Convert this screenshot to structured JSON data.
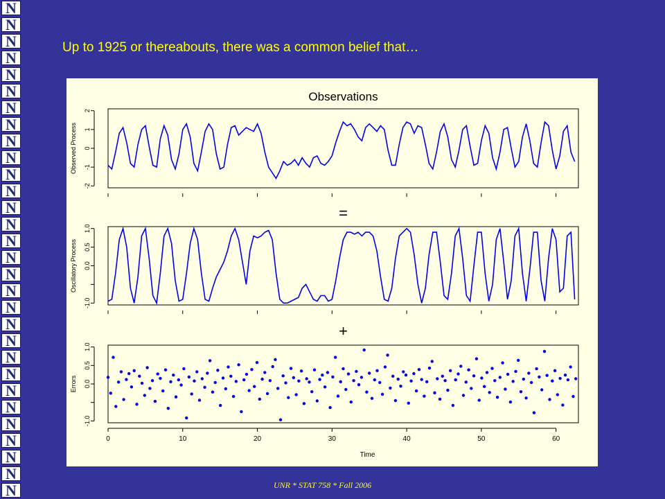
{
  "headline": "Up to 1925 or thereabouts, there was a common belief that…",
  "footer": "UNR * STAT 758 * Fall 2006",
  "logo_letter": "N",
  "colors": {
    "background": "#333399",
    "headline": "#ffff00",
    "panel": "#ffffe6",
    "series": "#0000ee"
  },
  "chart_data": [
    {
      "type": "line",
      "title": "Observations",
      "ylabel": "Observed Process",
      "yticks": [
        -2,
        -1,
        0,
        1,
        2
      ],
      "ylim": [
        -2.1,
        2.1
      ],
      "xlim": [
        0,
        63
      ],
      "series": [
        {
          "x": [
            0,
            0.5,
            1,
            1.5,
            2,
            2.5,
            3,
            3.5,
            4,
            4.5,
            5,
            5.5,
            6,
            6.5,
            7,
            7.5,
            8,
            8.5,
            9,
            9.5,
            10,
            10.5,
            11,
            11.5,
            12,
            12.5,
            13,
            13.5,
            14,
            14.5,
            15,
            15.5,
            16,
            16.5,
            17,
            17.5,
            18,
            18.5,
            19,
            19.5,
            20,
            20.5,
            21,
            21.5,
            22,
            22.5,
            23,
            23.5,
            24,
            24.5,
            25,
            25.5,
            26,
            26.5,
            27,
            27.5,
            28,
            28.5,
            29,
            29.5,
            30,
            30.5,
            31,
            31.5,
            32,
            32.5,
            33,
            33.5,
            34,
            34.5,
            35,
            35.5,
            36,
            36.5,
            37,
            37.5,
            38,
            38.5,
            39,
            39.5,
            40,
            40.5,
            41,
            41.5,
            42,
            42.5,
            43,
            43.5,
            44,
            44.5,
            45,
            45.5,
            46,
            46.5,
            47,
            47.5,
            48,
            48.5,
            49,
            49.5,
            50,
            50.5,
            51,
            51.5,
            52,
            52.5,
            53,
            53.5,
            54,
            54.5,
            55,
            55.5,
            56,
            56.5,
            57,
            57.5,
            58,
            58.5,
            59,
            59.5,
            60,
            60.5,
            61,
            61.5,
            62,
            62.5
          ],
          "values": [
            -0.9,
            -1.1,
            -0.2,
            0.8,
            1.1,
            0.3,
            -0.8,
            -1.0,
            0.2,
            1.0,
            1.2,
            0.1,
            -0.9,
            -1.0,
            0.5,
            1.2,
            0.7,
            -0.6,
            -1.1,
            -0.3,
            1.0,
            1.3,
            0.6,
            -0.8,
            -1.2,
            -0.2,
            0.9,
            1.3,
            1.0,
            -0.3,
            -1.1,
            -1.0,
            0.2,
            1.1,
            1.2,
            0.7,
            0.9,
            1.1,
            1.0,
            0.9,
            1.3,
            0.8,
            -0.2,
            -1.0,
            -1.3,
            -1.6,
            -1.2,
            -0.7,
            -0.9,
            -0.8,
            -0.6,
            -0.9,
            -0.5,
            -0.8,
            -1.0,
            -0.5,
            -0.4,
            -0.8,
            -0.9,
            -0.7,
            -0.4,
            0.3,
            0.9,
            1.4,
            1.2,
            1.3,
            1.0,
            0.6,
            0.4,
            1.1,
            1.3,
            1.1,
            0.9,
            1.2,
            1.0,
            -0.1,
            -0.9,
            -0.9,
            0.2,
            1.1,
            1.4,
            1.3,
            0.8,
            1.2,
            1.1,
            0.2,
            -0.8,
            -1.1,
            -0.2,
            0.9,
            1.3,
            0.6,
            -0.6,
            -1.0,
            -0.1,
            1.0,
            1.2,
            0.1,
            -0.9,
            -0.8,
            0.4,
            1.2,
            0.8,
            -0.5,
            -1.1,
            -0.2,
            1.0,
            1.1,
            0.0,
            -1.0,
            -0.7,
            0.6,
            1.3,
            0.4,
            -0.8,
            -1.0,
            0.3,
            1.4,
            1.2,
            -0.1,
            -1.1,
            -0.4,
            0.9,
            1.2,
            -0.2,
            -0.7
          ]
        }
      ]
    },
    {
      "type": "line",
      "title": "=",
      "ylabel": "Oscillatory Process",
      "yticks": [
        -1.0,
        -0.5,
        0.0,
        0.5,
        1.0
      ],
      "yticklabels": [
        "-1.0",
        "",
        "0.0",
        "0.5",
        "1.0"
      ],
      "ylim": [
        -1.05,
        1.05
      ],
      "xlim": [
        0,
        63
      ],
      "series": [
        {
          "x": [
            0,
            0.5,
            1,
            1.5,
            2,
            2.5,
            3,
            3.5,
            4,
            4.5,
            5,
            5.5,
            6,
            6.5,
            7,
            7.5,
            8,
            8.5,
            9,
            9.5,
            10,
            10.5,
            11,
            11.5,
            12,
            12.5,
            13,
            13.5,
            14,
            14.5,
            15,
            15.5,
            16,
            16.5,
            17,
            17.5,
            18,
            18.5,
            19,
            19.5,
            20,
            20.5,
            21,
            21.5,
            22,
            22.5,
            23,
            23.5,
            24,
            24.5,
            25,
            25.5,
            26,
            26.5,
            27,
            27.5,
            28,
            28.5,
            29,
            29.5,
            30,
            30.5,
            31,
            31.5,
            32,
            32.5,
            33,
            33.5,
            34,
            34.5,
            35,
            35.5,
            36,
            36.5,
            37,
            37.5,
            38,
            38.5,
            39,
            39.5,
            40,
            40.5,
            41,
            41.5,
            42,
            42.5,
            43,
            43.5,
            44,
            44.5,
            45,
            45.5,
            46,
            46.5,
            47,
            47.5,
            48,
            48.5,
            49,
            49.5,
            50,
            50.5,
            51,
            51.5,
            52,
            52.5,
            53,
            53.5,
            54,
            54.5,
            55,
            55.5,
            56,
            56.5,
            57,
            57.5,
            58,
            58.5,
            59,
            59.5,
            60,
            60.5,
            61,
            61.5,
            62,
            62.5
          ],
          "values": [
            -0.95,
            -0.9,
            -0.2,
            0.7,
            1.0,
            0.5,
            -0.6,
            -1.0,
            -0.3,
            0.8,
            1.0,
            0.2,
            -0.8,
            -1.0,
            -0.2,
            0.8,
            1.0,
            0.6,
            -0.4,
            -0.95,
            -0.9,
            -0.2,
            0.6,
            1.0,
            0.7,
            -0.2,
            -0.9,
            -0.95,
            -0.6,
            -0.3,
            -0.1,
            0.1,
            0.4,
            0.8,
            1.0,
            0.7,
            0.1,
            -0.5,
            0.4,
            0.8,
            0.75,
            0.8,
            0.9,
            0.95,
            0.7,
            -0.2,
            -0.9,
            -1.0,
            -1.0,
            -0.95,
            -0.9,
            -0.85,
            -0.6,
            -0.5,
            -0.7,
            -0.9,
            -0.95,
            -0.8,
            -0.8,
            -0.95,
            -0.9,
            -0.4,
            0.2,
            0.7,
            0.9,
            0.9,
            0.85,
            0.9,
            0.8,
            0.9,
            0.9,
            0.8,
            0.4,
            -0.3,
            -0.9,
            -0.95,
            -0.6,
            0.2,
            0.8,
            0.9,
            1.0,
            0.9,
            0.3,
            -0.5,
            -1.0,
            -0.6,
            0.3,
            0.9,
            0.9,
            0.1,
            -0.8,
            -0.9,
            -0.2,
            0.8,
            1.0,
            0.2,
            -0.8,
            -0.95,
            0.0,
            0.9,
            0.9,
            -0.2,
            -0.95,
            -0.5,
            0.7,
            1.0,
            0.1,
            -0.9,
            -0.4,
            0.8,
            1.0,
            -0.2,
            -0.95,
            -0.1,
            0.9,
            0.9,
            -0.4,
            -0.95,
            0.2,
            1.0,
            0.7,
            -0.7,
            -0.6,
            0.8,
            0.9,
            -0.9
          ]
        }
      ]
    },
    {
      "type": "scatter",
      "title": "+",
      "ylabel": "Errors",
      "xlabel": "Time",
      "yticks": [
        -1.0,
        -0.5,
        0.0,
        0.5,
        1.0
      ],
      "yticklabels": [
        "-1.0",
        "",
        "0.0",
        "0.5",
        "1.0"
      ],
      "ylim": [
        -1.05,
        1.05
      ],
      "xlim": [
        0,
        63
      ],
      "xticks": [
        0,
        10,
        20,
        30,
        40,
        50,
        60
      ],
      "series": [
        {
          "x": [
            0,
            0.35,
            0.7,
            1.05,
            1.4,
            1.75,
            2.1,
            2.45,
            2.8,
            3.15,
            3.5,
            3.85,
            4.2,
            4.55,
            4.9,
            5.25,
            5.6,
            5.95,
            6.3,
            6.65,
            7,
            7.35,
            7.7,
            8.05,
            8.4,
            8.75,
            9.1,
            9.45,
            9.8,
            10.15,
            10.5,
            10.85,
            11.2,
            11.55,
            11.9,
            12.25,
            12.6,
            12.95,
            13.3,
            13.65,
            14,
            14.35,
            14.7,
            15.05,
            15.4,
            15.75,
            16.1,
            16.45,
            16.8,
            17.15,
            17.5,
            17.85,
            18.2,
            18.55,
            18.9,
            19.25,
            19.6,
            19.95,
            20.3,
            20.65,
            21,
            21.35,
            21.7,
            22.05,
            22.4,
            22.75,
            23.1,
            23.45,
            23.8,
            24.15,
            24.5,
            24.85,
            25.2,
            25.55,
            25.9,
            26.25,
            26.6,
            26.95,
            27.3,
            27.65,
            28,
            28.35,
            28.7,
            29.05,
            29.4,
            29.75,
            30.1,
            30.45,
            30.8,
            31.15,
            31.5,
            31.85,
            32.2,
            32.55,
            32.9,
            33.25,
            33.6,
            33.95,
            34.3,
            34.65,
            35,
            35.35,
            35.7,
            36.05,
            36.4,
            36.75,
            37.1,
            37.45,
            37.8,
            38.15,
            38.5,
            38.85,
            39.2,
            39.55,
            39.9,
            40.25,
            40.6,
            40.95,
            41.3,
            41.65,
            42,
            42.35,
            42.7,
            43.05,
            43.4,
            43.75,
            44.1,
            44.45,
            44.8,
            45.15,
            45.5,
            45.85,
            46.2,
            46.55,
            46.9,
            47.25,
            47.6,
            47.95,
            48.3,
            48.65,
            49,
            49.35,
            49.7,
            50.05,
            50.4,
            50.75,
            51.1,
            51.45,
            51.8,
            52.15,
            52.5,
            52.85,
            53.2,
            53.55,
            53.9,
            54.25,
            54.6,
            54.95,
            55.3,
            55.65,
            56,
            56.35,
            56.7,
            57.05,
            57.4,
            57.75,
            58.1,
            58.45,
            58.8,
            59.15,
            59.5,
            59.85,
            60.2,
            60.55,
            60.9,
            61.25,
            61.6,
            61.95,
            62.3,
            62.65
          ],
          "values": [
            0.18,
            -0.25,
            0.72,
            -0.61,
            0.05,
            0.33,
            -0.42,
            0.12,
            0.28,
            -0.08,
            0.36,
            -0.55,
            0.21,
            0.02,
            -0.31,
            0.44,
            -0.12,
            0.09,
            -0.47,
            0.27,
            0.15,
            -0.19,
            0.38,
            -0.66,
            0.06,
            0.24,
            -0.35,
            0.11,
            -0.03,
            0.41,
            -0.92,
            0.19,
            -0.27,
            0.08,
            0.33,
            -0.44,
            0.14,
            -0.09,
            0.29,
            0.63,
            -0.22,
            0.04,
            0.37,
            -0.58,
            0.16,
            -0.13,
            0.46,
            0.21,
            -0.34,
            0.07,
            0.52,
            -0.75,
            0.11,
            0.26,
            -0.18,
            0.39,
            -0.07,
            0.58,
            -0.41,
            0.13,
            0.31,
            -0.26,
            0.09,
            0.47,
            0.66,
            -0.12,
            -0.97,
            0.22,
            0.03,
            -0.37,
            0.42,
            0.17,
            -0.29,
            0.08,
            0.35,
            -0.53,
            0.14,
            0.05,
            -0.21,
            0.38,
            -0.46,
            0.12,
            0.24,
            -0.08,
            0.31,
            -0.64,
            0.19,
            0.72,
            -0.33,
            0.06,
            0.41,
            -0.15,
            0.27,
            -0.49,
            0.09,
            0.34,
            -0.02,
            0.18,
            0.92,
            -0.22,
            0.29,
            -0.39,
            0.11,
            0.36,
            0.04,
            -0.28,
            0.46,
            0.78,
            -0.11,
            0.21,
            -0.45,
            0.13,
            -0.06,
            0.33,
            0.24,
            -0.52,
            0.08,
            0.28,
            -0.19,
            0.39,
            0.12,
            -0.33,
            0.06,
            0.43,
            0.61,
            -0.24,
            0.14,
            -0.41,
            0.21,
            0.09,
            -0.17,
            0.36,
            -0.58,
            0.11,
            0.27,
            0.48,
            -0.31,
            0.05,
            0.38,
            -0.12,
            0.22,
            0.68,
            -0.44,
            0.16,
            -0.07,
            0.31,
            -0.23,
            0.42,
            0.09,
            -0.36,
            0.18,
            0.57,
            -0.14,
            0.26,
            -0.49,
            0.07,
            0.34,
            0.64,
            -0.21,
            0.13,
            -0.38,
            0.29,
            0.04,
            -0.78,
            0.41,
            0.19,
            -0.16,
            0.88,
            0.23,
            -0.42,
            0.08,
            0.36,
            -0.29,
            0.15,
            -0.57,
            0.24,
            0.11,
            0.46,
            -0.34,
            0.14
          ]
        }
      ]
    }
  ]
}
